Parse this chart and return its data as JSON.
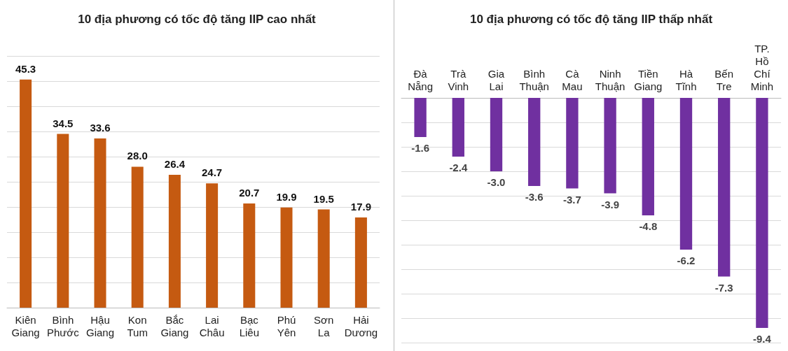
{
  "chart_data": [
    {
      "type": "bar",
      "title": "10 địa phương có tốc độ tăng IIP cao nhất",
      "categories": [
        "Kiên Giang",
        "Bình Phước",
        "Hậu Giang",
        "Kon Tum",
        "Bắc Giang",
        "Lai Châu",
        "Bạc Liêu",
        "Phú Yên",
        "Sơn La",
        "Hải Dương"
      ],
      "values": [
        45.3,
        34.5,
        33.6,
        28.0,
        26.4,
        24.7,
        20.7,
        19.9,
        19.5,
        17.9
      ],
      "value_labels": [
        "45.3",
        "34.5",
        "33.6",
        "28.0",
        "26.4",
        "24.7",
        "20.7",
        "19.9",
        "19.5",
        "17.9"
      ],
      "color": "#c55a11",
      "ylim": [
        0,
        50
      ],
      "yticks": [
        {
          "value": 0,
          "label": null
        },
        {
          "value": 5,
          "label": null
        },
        {
          "value": 10,
          "label": null
        },
        {
          "value": 15,
          "label": null
        },
        {
          "value": 20,
          "label": null
        },
        {
          "value": 25,
          "label": null
        },
        {
          "value": 30,
          "label": null
        },
        {
          "value": 35,
          "label": null
        },
        {
          "value": 40,
          "label": null
        },
        {
          "value": 45,
          "label": null
        },
        {
          "value": 50,
          "label": null
        }
      ],
      "grid": "y",
      "tick_labels": "x"
    },
    {
      "type": "bar",
      "title": "10 địa phương có tốc độ tăng IIP thấp nhất",
      "categories": [
        "Đà Nẵng",
        "Trà Vinh",
        "Gia Lai",
        "Bình Thuận",
        "Cà Mau",
        "Ninh Thuận",
        "Tiền Giang",
        "Hà Tĩnh",
        "Bến Tre",
        "TP. Hồ Chí Minh"
      ],
      "values": [
        -1.6,
        -2.4,
        -3.0,
        -3.6,
        -3.7,
        -3.9,
        -4.8,
        -6.2,
        -7.3,
        -9.4
      ],
      "value_labels": [
        "-1.6",
        "-2.4",
        "-3.0",
        "-3.6",
        "-3.7",
        "-3.9",
        "-4.8",
        "-6.2",
        "-7.3",
        "-9.4"
      ],
      "color": "#7030a0",
      "ylim": [
        -10,
        0
      ],
      "yticks": [
        {
          "value": -10,
          "label": null
        },
        {
          "value": -9,
          "label": null
        },
        {
          "value": -8,
          "label": null
        },
        {
          "value": -7,
          "label": null
        },
        {
          "value": -6,
          "label": null
        },
        {
          "value": -5,
          "label": null
        },
        {
          "value": -4,
          "label": null
        },
        {
          "value": -3,
          "label": null
        },
        {
          "value": -2,
          "label": null
        },
        {
          "value": -1,
          "label": null
        },
        {
          "value": 0,
          "label": null
        }
      ],
      "grid": "y",
      "tick_labels": "x"
    }
  ]
}
